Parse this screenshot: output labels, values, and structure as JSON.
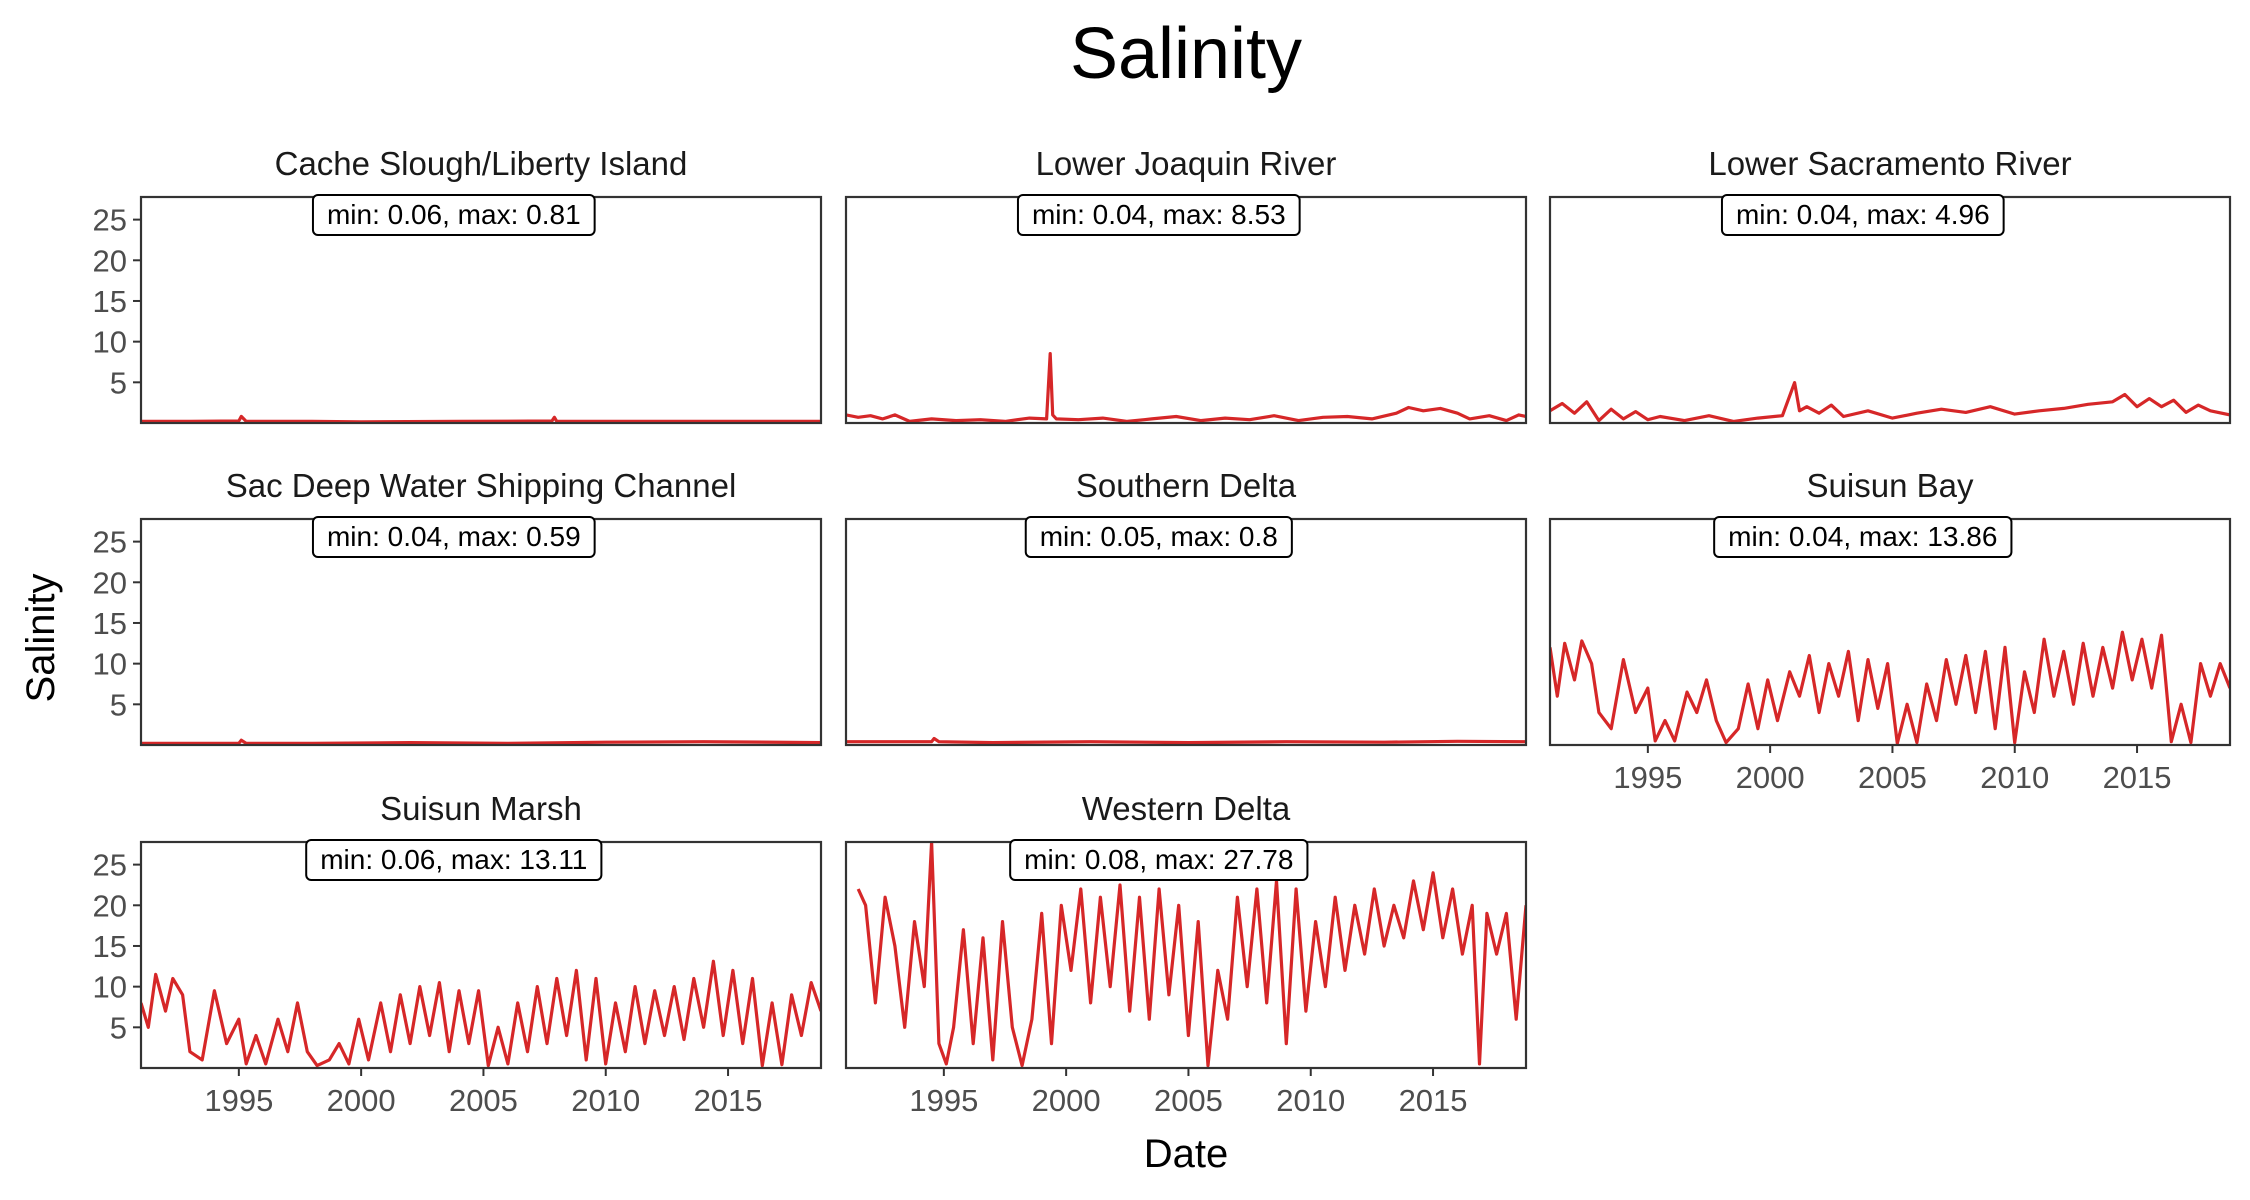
{
  "chart_data": {
    "type": "line",
    "title": "Salinity",
    "xlabel": "Date",
    "ylabel": "Salinity",
    "xlim": [
      1991,
      2018.8
    ],
    "ylim": [
      0,
      27.78
    ],
    "x_ticks": [
      1995,
      2000,
      2005,
      2010,
      2015
    ],
    "y_ticks": [
      5,
      10,
      15,
      20,
      25
    ],
    "grid": false,
    "series_color": "#d62728",
    "panels": [
      {
        "name": "Cache Slough/Liberty Island",
        "annotation": "min: 0.06, max: 0.81",
        "x": [
          1991.0,
          1993.0,
          1995.0,
          1995.1,
          1995.3,
          1998.0,
          2000.0,
          2004.0,
          2007.8,
          2007.9,
          2008.0,
          2012.0,
          2016.0,
          2018.8
        ],
        "y": [
          0.2,
          0.2,
          0.25,
          0.81,
          0.2,
          0.2,
          0.15,
          0.2,
          0.25,
          0.7,
          0.2,
          0.2,
          0.2,
          0.2
        ]
      },
      {
        "name": "Lower Joaquin River",
        "annotation": "min: 0.04, max: 8.53",
        "x": [
          1991.0,
          1991.5,
          1992.0,
          1992.5,
          1993.0,
          1993.6,
          1994.5,
          1995.5,
          1996.5,
          1997.5,
          1998.5,
          1999.2,
          1999.35,
          1999.45,
          1999.6,
          2000.5,
          2001.5,
          2002.5,
          2003.5,
          2004.5,
          2005.5,
          2006.5,
          2007.5,
          2008.5,
          2009.5,
          2010.5,
          2011.5,
          2012.5,
          2013.5,
          2014.0,
          2014.6,
          2015.3,
          2016.0,
          2016.5,
          2017.3,
          2018.0,
          2018.5,
          2018.8
        ],
        "y": [
          1.0,
          0.7,
          0.9,
          0.5,
          1.0,
          0.2,
          0.5,
          0.3,
          0.4,
          0.2,
          0.6,
          0.5,
          8.53,
          1.0,
          0.5,
          0.4,
          0.6,
          0.2,
          0.5,
          0.8,
          0.3,
          0.6,
          0.4,
          0.9,
          0.3,
          0.7,
          0.8,
          0.5,
          1.2,
          1.9,
          1.5,
          1.8,
          1.2,
          0.5,
          0.9,
          0.3,
          1.0,
          0.8
        ]
      },
      {
        "name": "Lower Sacramento River",
        "annotation": "min: 0.04, max: 4.96",
        "x": [
          1991.0,
          1991.5,
          1992.0,
          1992.5,
          1993.0,
          1993.5,
          1994.0,
          1994.5,
          1995.0,
          1995.5,
          1996.5,
          1997.5,
          1998.5,
          1999.5,
          2000.5,
          2001.0,
          2001.2,
          2001.5,
          2002.0,
          2002.5,
          2003.0,
          2004.0,
          2005.0,
          2006.0,
          2007.0,
          2008.0,
          2009.0,
          2010.0,
          2011.0,
          2012.0,
          2013.0,
          2014.0,
          2014.5,
          2015.0,
          2015.5,
          2016.0,
          2016.5,
          2017.0,
          2017.5,
          2018.0,
          2018.8
        ],
        "y": [
          1.5,
          2.4,
          1.2,
          2.6,
          0.3,
          1.7,
          0.5,
          1.4,
          0.4,
          0.8,
          0.3,
          0.9,
          0.2,
          0.6,
          0.9,
          4.96,
          1.5,
          2.0,
          1.2,
          2.2,
          0.8,
          1.5,
          0.6,
          1.2,
          1.7,
          1.3,
          2.0,
          1.1,
          1.5,
          1.8,
          2.3,
          2.6,
          3.5,
          2.0,
          3.0,
          2.0,
          2.8,
          1.3,
          2.2,
          1.5,
          1.0
        ]
      },
      {
        "name": "Sac Deep Water Shipping Channel",
        "annotation": "min: 0.04, max: 0.59",
        "x": [
          1991.0,
          1994.0,
          1995.0,
          1995.1,
          1995.3,
          1998.0,
          2002.0,
          2006.0,
          2010.0,
          2014.0,
          2018.8
        ],
        "y": [
          0.2,
          0.2,
          0.2,
          0.59,
          0.2,
          0.2,
          0.3,
          0.2,
          0.35,
          0.4,
          0.3
        ]
      },
      {
        "name": "Southern Delta",
        "annotation": "min: 0.05, max: 0.8",
        "x": [
          1991.0,
          1993.0,
          1994.5,
          1994.6,
          1994.8,
          1997.0,
          2001.0,
          2005.0,
          2009.0,
          2013.0,
          2016.0,
          2018.8
        ],
        "y": [
          0.4,
          0.4,
          0.4,
          0.8,
          0.4,
          0.3,
          0.4,
          0.3,
          0.4,
          0.35,
          0.45,
          0.4
        ]
      },
      {
        "name": "Suisun Bay",
        "annotation": "min: 0.04, max: 13.86",
        "x": [
          1991.0,
          1991.3,
          1991.6,
          1992.0,
          1992.3,
          1992.7,
          1993.0,
          1993.5,
          1994.0,
          1994.5,
          1995.0,
          1995.3,
          1995.7,
          1996.1,
          1996.6,
          1997.0,
          1997.4,
          1997.8,
          1998.2,
          1998.7,
          1999.1,
          1999.5,
          1999.9,
          2000.3,
          2000.8,
          2001.2,
          2001.6,
          2002.0,
          2002.4,
          2002.8,
          2003.2,
          2003.6,
          2004.0,
          2004.4,
          2004.8,
          2005.2,
          2005.6,
          2006.0,
          2006.4,
          2006.8,
          2007.2,
          2007.6,
          2008.0,
          2008.4,
          2008.8,
          2009.2,
          2009.6,
          2010.0,
          2010.4,
          2010.8,
          2011.2,
          2011.6,
          2012.0,
          2012.4,
          2012.8,
          2013.2,
          2013.6,
          2014.0,
          2014.4,
          2014.8,
          2015.2,
          2015.6,
          2016.0,
          2016.4,
          2016.8,
          2017.2,
          2017.6,
          2018.0,
          2018.4,
          2018.8
        ],
        "y": [
          12.0,
          6.0,
          12.5,
          8.0,
          12.8,
          10.0,
          4.0,
          2.0,
          10.5,
          4.0,
          7.0,
          0.5,
          3.0,
          0.5,
          6.5,
          4.0,
          8.0,
          3.0,
          0.3,
          2.0,
          7.5,
          2.0,
          8.0,
          3.0,
          9.0,
          6.0,
          11.0,
          4.0,
          10.0,
          6.0,
          11.5,
          3.0,
          10.5,
          4.5,
          10.0,
          0.2,
          5.0,
          0.3,
          7.5,
          3.0,
          10.5,
          5.0,
          11.0,
          4.0,
          11.5,
          2.0,
          12.0,
          0.3,
          9.0,
          4.0,
          13.0,
          6.0,
          11.5,
          5.0,
          12.5,
          6.0,
          12.0,
          7.0,
          13.86,
          8.0,
          13.0,
          7.0,
          13.5,
          0.4,
          5.0,
          0.3,
          10.0,
          6.0,
          10.0,
          7.0
        ]
      },
      {
        "name": "Suisun Marsh",
        "annotation": "min: 0.06, max: 13.11",
        "x": [
          1991.0,
          1991.3,
          1991.6,
          1992.0,
          1992.3,
          1992.7,
          1993.0,
          1993.5,
          1994.0,
          1994.5,
          1995.0,
          1995.3,
          1995.7,
          1996.1,
          1996.6,
          1997.0,
          1997.4,
          1997.8,
          1998.2,
          1998.7,
          1999.1,
          1999.5,
          1999.9,
          2000.3,
          2000.8,
          2001.2,
          2001.6,
          2002.0,
          2002.4,
          2002.8,
          2003.2,
          2003.6,
          2004.0,
          2004.4,
          2004.8,
          2005.2,
          2005.6,
          2006.0,
          2006.4,
          2006.8,
          2007.2,
          2007.6,
          2008.0,
          2008.4,
          2008.8,
          2009.2,
          2009.6,
          2010.0,
          2010.4,
          2010.8,
          2011.2,
          2011.6,
          2012.0,
          2012.4,
          2012.8,
          2013.2,
          2013.6,
          2014.0,
          2014.4,
          2014.8,
          2015.2,
          2015.6,
          2016.0,
          2016.4,
          2016.8,
          2017.2,
          2017.6,
          2018.0,
          2018.4,
          2018.8
        ],
        "y": [
          8.0,
          5.0,
          11.5,
          7.0,
          11.0,
          9.0,
          2.0,
          1.0,
          9.5,
          3.0,
          6.0,
          0.5,
          4.0,
          0.5,
          6.0,
          2.0,
          8.0,
          2.0,
          0.3,
          1.0,
          3.0,
          0.5,
          6.0,
          1.0,
          8.0,
          2.0,
          9.0,
          3.0,
          10.0,
          4.0,
          10.5,
          2.0,
          9.5,
          3.0,
          9.5,
          0.3,
          5.0,
          0.5,
          8.0,
          2.0,
          10.0,
          3.0,
          11.0,
          4.0,
          12.0,
          1.0,
          11.0,
          0.5,
          8.0,
          2.0,
          10.0,
          3.0,
          9.5,
          4.0,
          10.0,
          3.5,
          11.0,
          5.0,
          13.11,
          4.0,
          12.0,
          3.0,
          11.0,
          0.3,
          8.0,
          0.4,
          9.0,
          4.0,
          10.5,
          7.0
        ]
      },
      {
        "name": "Western Delta",
        "annotation": "min: 0.08, max: 27.78",
        "x": [
          1991.5,
          1991.8,
          1992.2,
          1992.6,
          1993.0,
          1993.4,
          1993.8,
          1994.2,
          1994.5,
          1994.8,
          1995.1,
          1995.4,
          1995.8,
          1996.2,
          1996.6,
          1997.0,
          1997.4,
          1997.8,
          1998.2,
          1998.6,
          1999.0,
          1999.4,
          1999.8,
          2000.2,
          2000.6,
          2001.0,
          2001.4,
          2001.8,
          2002.2,
          2002.6,
          2003.0,
          2003.4,
          2003.8,
          2004.2,
          2004.6,
          2005.0,
          2005.4,
          2005.8,
          2006.2,
          2006.6,
          2007.0,
          2007.4,
          2007.8,
          2008.2,
          2008.6,
          2009.0,
          2009.4,
          2009.8,
          2010.2,
          2010.6,
          2011.0,
          2011.4,
          2011.8,
          2012.2,
          2012.6,
          2013.0,
          2013.4,
          2013.8,
          2014.2,
          2014.6,
          2015.0,
          2015.4,
          2015.8,
          2016.2,
          2016.6,
          2016.9,
          2017.2,
          2017.6,
          2018.0,
          2018.4,
          2018.8
        ],
        "y": [
          22.0,
          20.0,
          8.0,
          21.0,
          15.0,
          5.0,
          18.0,
          10.0,
          27.78,
          3.0,
          0.5,
          5.0,
          17.0,
          3.0,
          16.0,
          1.0,
          18.0,
          5.0,
          0.3,
          6.0,
          19.0,
          3.0,
          20.0,
          12.0,
          22.0,
          8.0,
          21.0,
          10.0,
          22.5,
          7.0,
          21.0,
          6.0,
          22.0,
          9.0,
          20.0,
          4.0,
          18.0,
          0.3,
          12.0,
          6.0,
          21.0,
          10.0,
          22.0,
          8.0,
          23.0,
          3.0,
          22.0,
          7.0,
          18.0,
          10.0,
          21.0,
          12.0,
          20.0,
          14.0,
          22.0,
          15.0,
          20.0,
          16.0,
          23.0,
          17.0,
          24.0,
          16.0,
          22.0,
          14.0,
          20.0,
          0.5,
          19.0,
          14.0,
          19.0,
          6.0,
          20.0
        ]
      }
    ]
  }
}
